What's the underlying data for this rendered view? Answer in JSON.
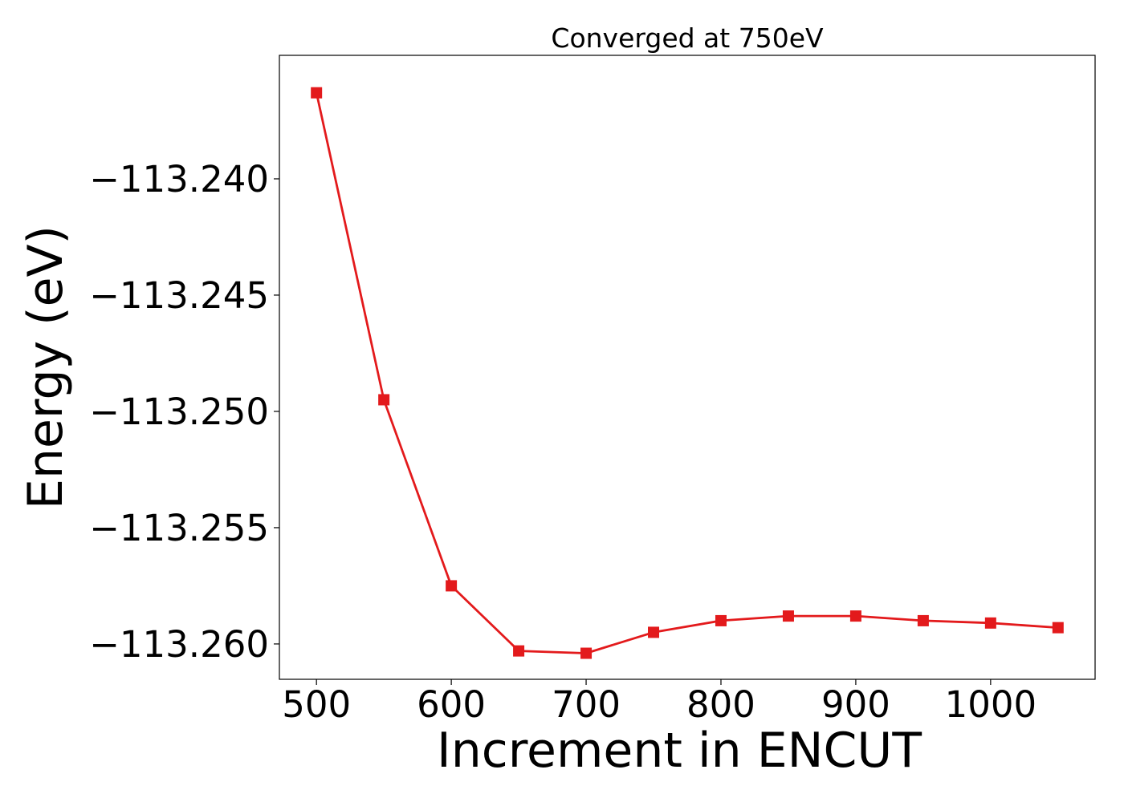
{
  "chart_data": {
    "type": "line",
    "title": "Converged at 750eV",
    "xlabel": "Increment in ENCUT",
    "ylabel": "Energy (eV)",
    "xlim": [
      472.5,
      1077.5
    ],
    "ylim": [
      -113.26152,
      -113.23469
    ],
    "xticks": [
      500,
      600,
      700,
      800,
      900,
      1000
    ],
    "xtick_labels": [
      "500",
      "600",
      "700",
      "800",
      "900",
      "1000"
    ],
    "yticks": [
      -113.24,
      -113.245,
      -113.25,
      -113.255,
      -113.26
    ],
    "ytick_labels": [
      "−113.240",
      "−113.245",
      "−113.250",
      "−113.255",
      "−113.260"
    ],
    "grid": false,
    "legend": "none",
    "series": [
      {
        "color": "#e31a1c",
        "marker": "square",
        "x": [
          500,
          550,
          600,
          650,
          700,
          750,
          800,
          850,
          900,
          950,
          1000,
          1050
        ],
        "y": [
          -113.2363,
          -113.2495,
          -113.2575,
          -113.2603,
          -113.2604,
          -113.2595,
          -113.259,
          -113.2588,
          -113.2588,
          -113.259,
          -113.2591,
          -113.2593
        ]
      }
    ]
  }
}
